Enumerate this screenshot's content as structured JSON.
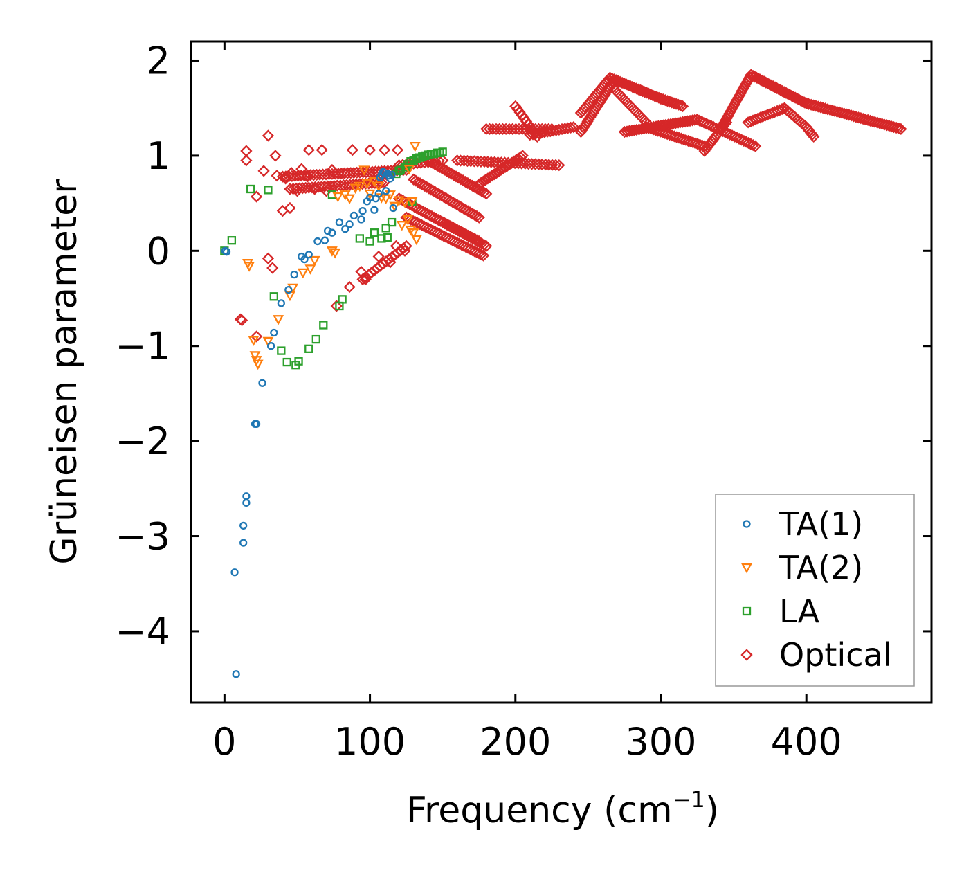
{
  "chart_data": {
    "type": "scatter",
    "title": "",
    "xlabel": "Frequency (cm",
    "xlabel_sup": "−1",
    "xlabel_end": ")",
    "ylabel": "Grüneisen parameter",
    "xlim": [
      -23,
      486
    ],
    "ylim": [
      -4.75,
      2.2
    ],
    "xticks": [
      0,
      100,
      200,
      300,
      400
    ],
    "xtick_labels": [
      "0",
      "100",
      "200",
      "300",
      "400"
    ],
    "yticks": [
      2,
      1,
      0,
      -1,
      -2,
      -3,
      -4
    ],
    "ytick_labels": [
      "2",
      "1",
      "0",
      "−1",
      "−2",
      "−3",
      "−4"
    ],
    "legend_position": "lower-right",
    "series": [
      {
        "name": "TA(1)",
        "marker": "circle",
        "color": "#1f77b4",
        "x": [
          0.5,
          1.5,
          8,
          7,
          13,
          13,
          15,
          15,
          22,
          21,
          26,
          32,
          34,
          39,
          44,
          48,
          53,
          55,
          58,
          64,
          69,
          71,
          74,
          79,
          83,
          86,
          89,
          94,
          95,
          98,
          100,
          103,
          104,
          106,
          107,
          108,
          109,
          110,
          111,
          112,
          113,
          114,
          115,
          116
        ],
        "y": [
          0.0,
          -0.01,
          -4.45,
          -3.38,
          -3.07,
          -2.89,
          -2.65,
          -2.58,
          -1.82,
          -1.82,
          -1.39,
          -1.0,
          -0.86,
          -0.55,
          -0.41,
          -0.25,
          -0.06,
          -0.09,
          -0.04,
          0.1,
          0.11,
          0.21,
          0.19,
          0.3,
          0.23,
          0.28,
          0.37,
          0.33,
          0.42,
          0.52,
          0.56,
          0.43,
          0.55,
          0.6,
          0.77,
          0.8,
          0.83,
          0.82,
          0.63,
          0.81,
          0.79,
          0.76,
          0.8,
          0.45
        ]
      },
      {
        "name": "TA(2)",
        "marker": "triangle-down",
        "color": "#ff7f0e",
        "x": [
          16,
          17,
          20,
          21,
          22,
          23,
          30,
          37,
          45,
          47,
          54,
          59,
          62,
          74,
          76,
          78,
          83,
          86,
          90,
          93,
          96,
          98,
          100,
          103,
          106,
          108,
          111,
          114,
          117,
          120,
          122,
          124,
          126,
          127,
          128,
          129,
          130,
          131,
          132
        ],
        "y": [
          -0.13,
          -0.16,
          -0.94,
          -1.1,
          -1.15,
          -1.19,
          -0.95,
          -0.72,
          -0.47,
          -0.39,
          -0.23,
          -0.19,
          -0.1,
          0.0,
          -0.02,
          0.57,
          0.59,
          0.55,
          0.66,
          0.68,
          0.85,
          0.71,
          0.6,
          0.73,
          0.68,
          0.56,
          0.55,
          0.59,
          0.47,
          0.53,
          0.27,
          0.51,
          0.33,
          0.86,
          0.22,
          0.52,
          0.19,
          1.1,
          0.12
        ]
      },
      {
        "name": "LA",
        "marker": "square",
        "color": "#2ca02c",
        "x": [
          0,
          5,
          18,
          30,
          34,
          39,
          43,
          49,
          51,
          58,
          63,
          68,
          74,
          79,
          81,
          93,
          100,
          103,
          108,
          111,
          115,
          118,
          121,
          124,
          126,
          128,
          130,
          132,
          134,
          136,
          138,
          140,
          142,
          144,
          146,
          148,
          150
        ],
        "y": [
          0.0,
          0.11,
          0.65,
          0.64,
          -0.48,
          -1.05,
          -1.17,
          -1.2,
          -1.16,
          -1.03,
          -0.93,
          -0.78,
          0.59,
          -0.58,
          -0.51,
          0.13,
          0.1,
          0.19,
          0.13,
          0.24,
          0.3,
          0.81,
          0.85,
          0.88,
          0.91,
          0.94,
          0.95,
          0.97,
          0.98,
          0.99,
          1.0,
          1.01,
          1.02,
          1.02,
          1.03,
          1.03,
          1.04
        ],
        "x_extra": [
          120,
          125,
          129,
          112
        ],
        "y_extra": [
          0.84,
          0.88,
          0.52,
          0.14
        ]
      },
      {
        "name": "Optical",
        "marker": "diamond",
        "color": "#d62728",
        "x": [],
        "y": []
      }
    ]
  },
  "legend": {
    "items": [
      {
        "label": "TA(1)"
      },
      {
        "label": "TA(2)"
      },
      {
        "label": "LA"
      },
      {
        "label": "Optical"
      }
    ]
  }
}
